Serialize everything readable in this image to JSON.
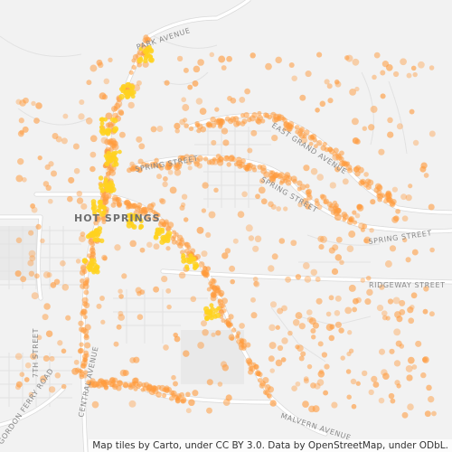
{
  "map": {
    "city_label": "HOT SPRINGS",
    "colors": {
      "background": "#f2f2f2",
      "road": "#ffffff",
      "road_outline": "#dedede",
      "minor_road": "#e6e6e6",
      "water_or_area": "#e4e4e4",
      "dot": "#ff9a3c",
      "dense": "#ffd21f"
    },
    "street_labels": [
      {
        "id": "park-avenue",
        "text": "PARK AVENUE"
      },
      {
        "id": "east-grand-avenue",
        "text": "EAST GRAND AVENUE"
      },
      {
        "id": "spring-street-west",
        "text": "SPRING STREET"
      },
      {
        "id": "spring-street-mid",
        "text": "SPRING STREET"
      },
      {
        "id": "spring-street-east",
        "text": "SPRING STREET"
      },
      {
        "id": "ridgeway-street",
        "text": "RIDGEWAY STREET"
      },
      {
        "id": "malvern-avenue",
        "text": "MALVERN AVENUE"
      },
      {
        "id": "7th-street",
        "text": "7TH STREET"
      },
      {
        "id": "central-avenue",
        "text": "CENTRAL AVENUE"
      },
      {
        "id": "gordon-ferry-road",
        "text": "GORDON FERRY ROAD"
      }
    ],
    "attribution": "Map tiles by Carto, under CC BY 3.0. Data by OpenStreetMap, under ODbL."
  }
}
